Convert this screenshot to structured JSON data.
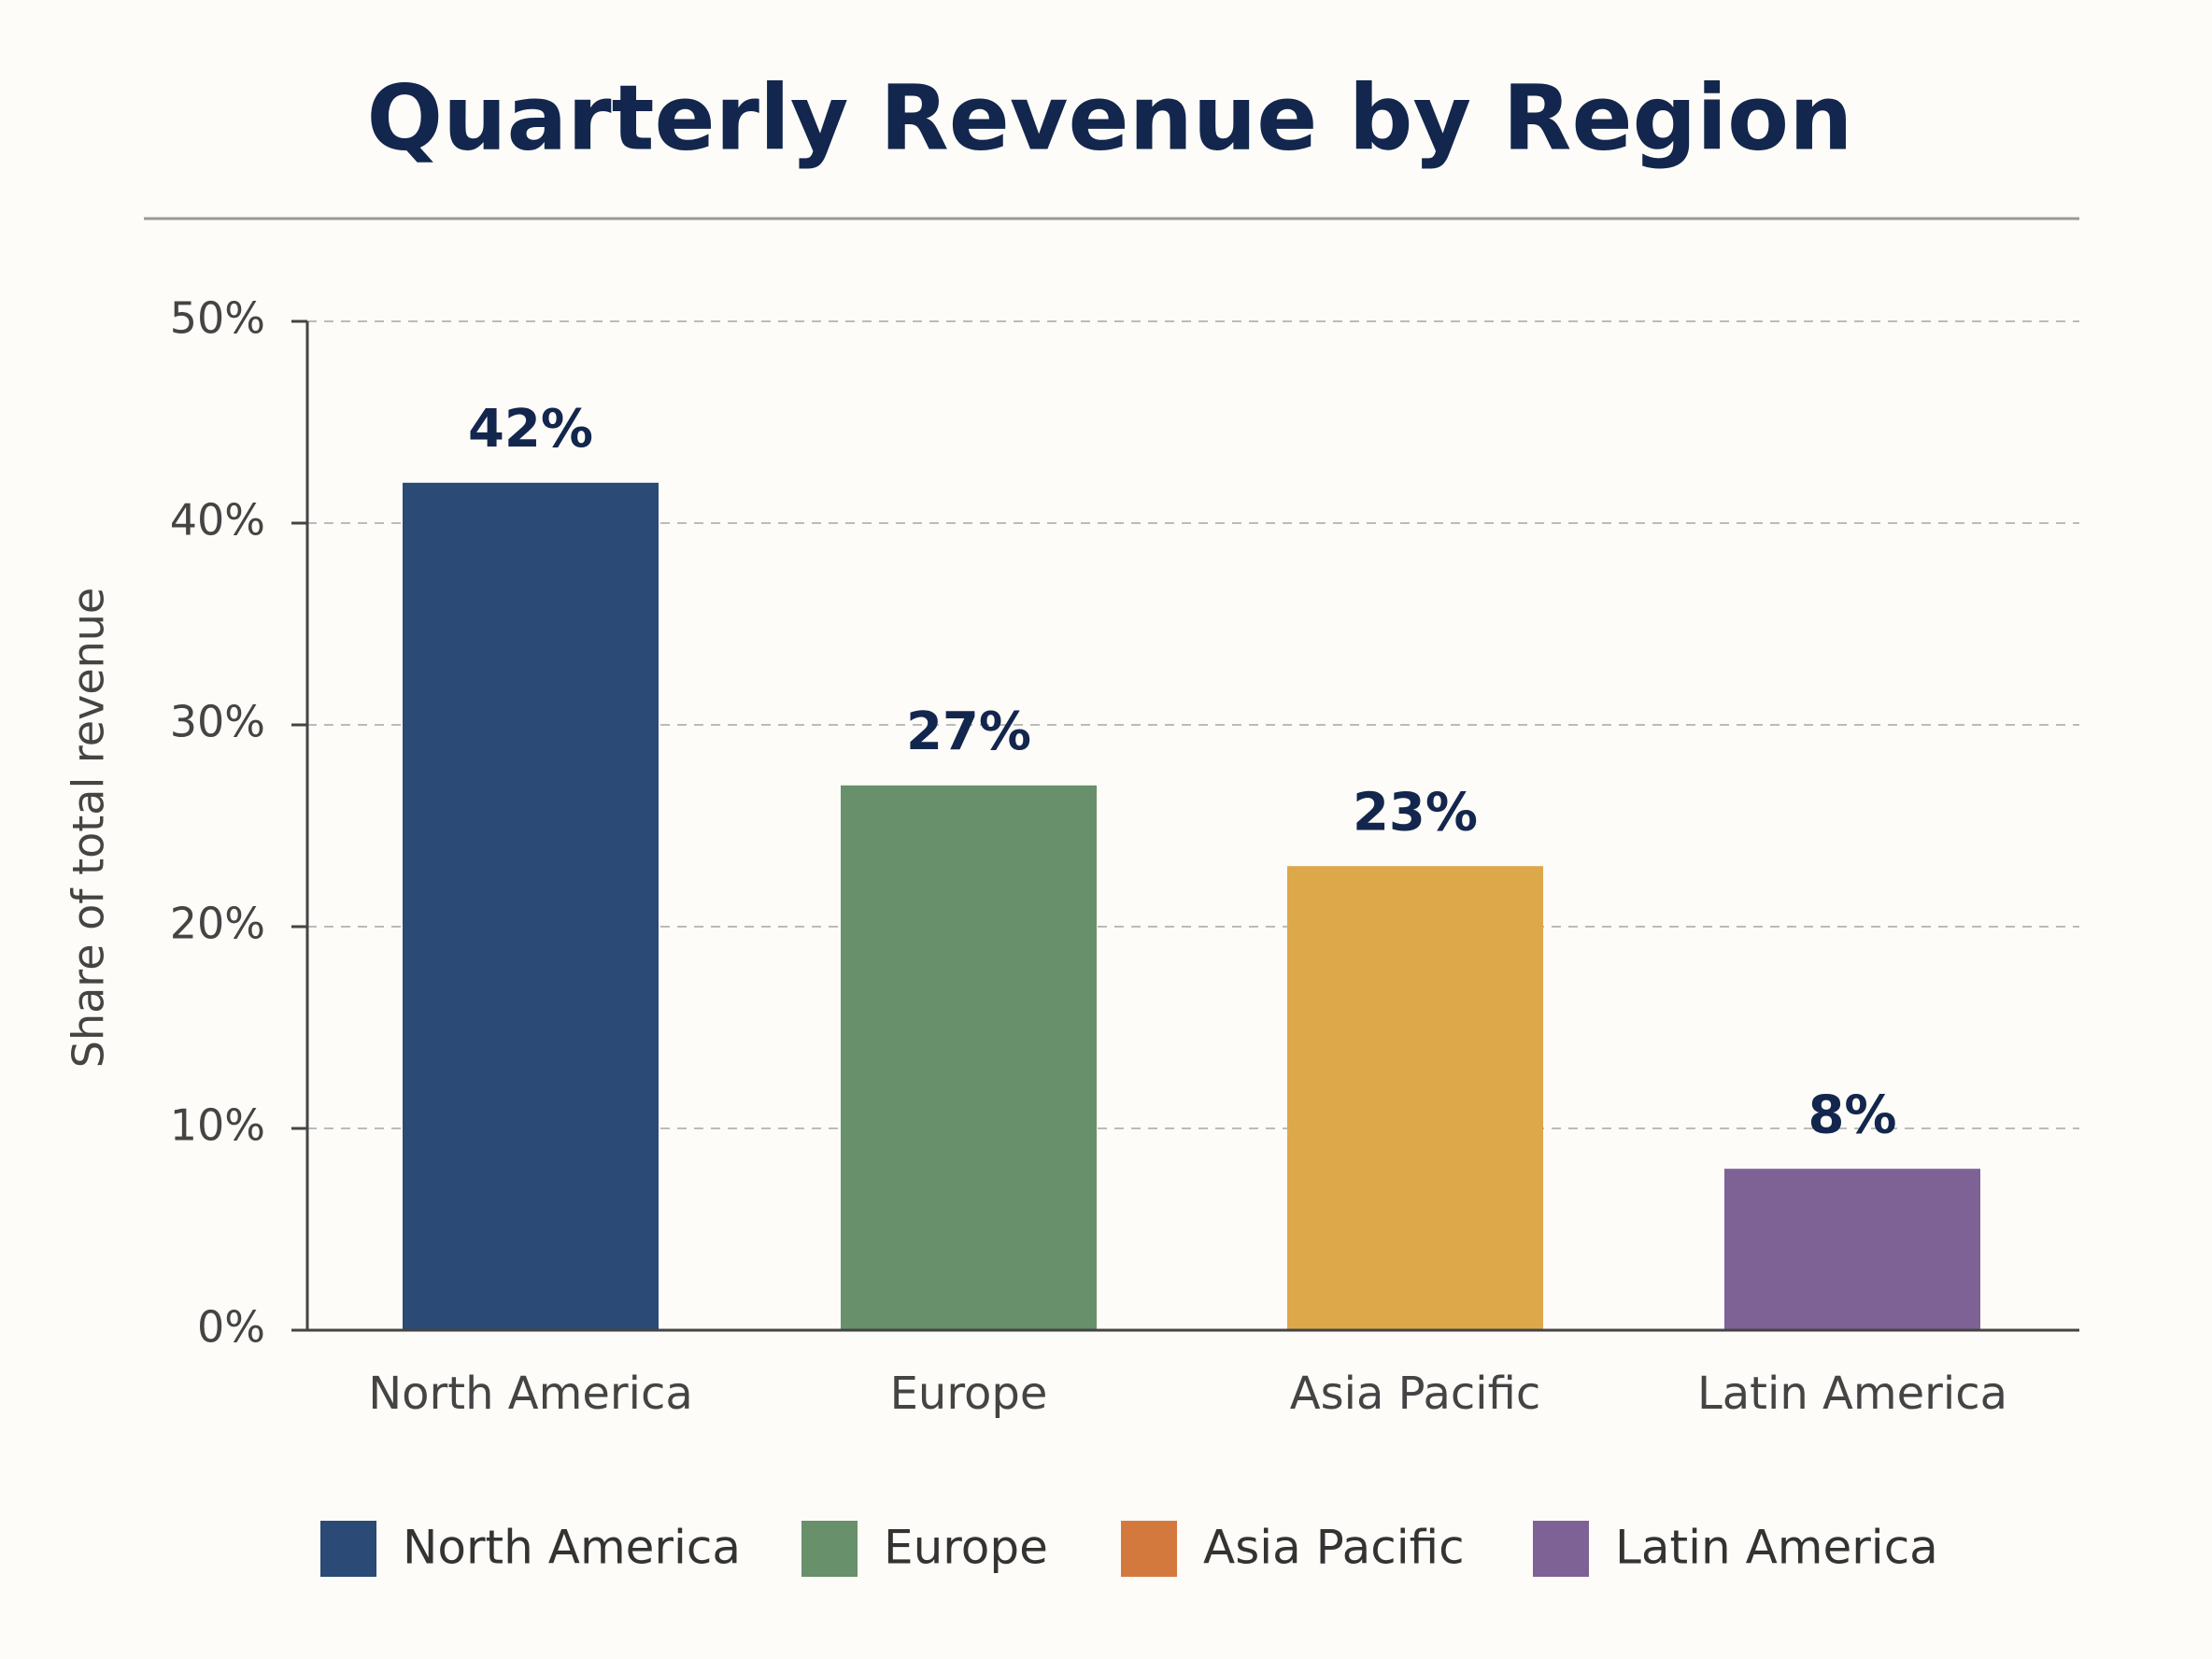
{
  "chart_data": {
    "type": "bar",
    "title": "Quarterly Revenue by Region",
    "y_label": "Share of total revenue",
    "categories": [
      "North America",
      "Europe",
      "Asia Pacific",
      "Latin America"
    ],
    "values": [
      42,
      27,
      23,
      8
    ],
    "value_labels": [
      "42%",
      "27%",
      "23%",
      "8%"
    ],
    "colors": [
      "#2b4a75",
      "#68906a",
      "#dda84a",
      "#7e6296"
    ],
    "legend_colors": [
      "#2b4a75",
      "#68906a",
      "#d4793e",
      "#7e6296"
    ],
    "ylim": [
      0,
      50
    ],
    "yticks": [
      {
        "value": 0,
        "label": "0%"
      },
      {
        "value": 10,
        "label": "10%"
      },
      {
        "value": 20,
        "label": "20%"
      },
      {
        "value": 30,
        "label": "30%"
      },
      {
        "value": 40,
        "label": "40%"
      },
      {
        "value": 50,
        "label": "50%"
      }
    ],
    "grid": true,
    "legend": "bottom"
  }
}
